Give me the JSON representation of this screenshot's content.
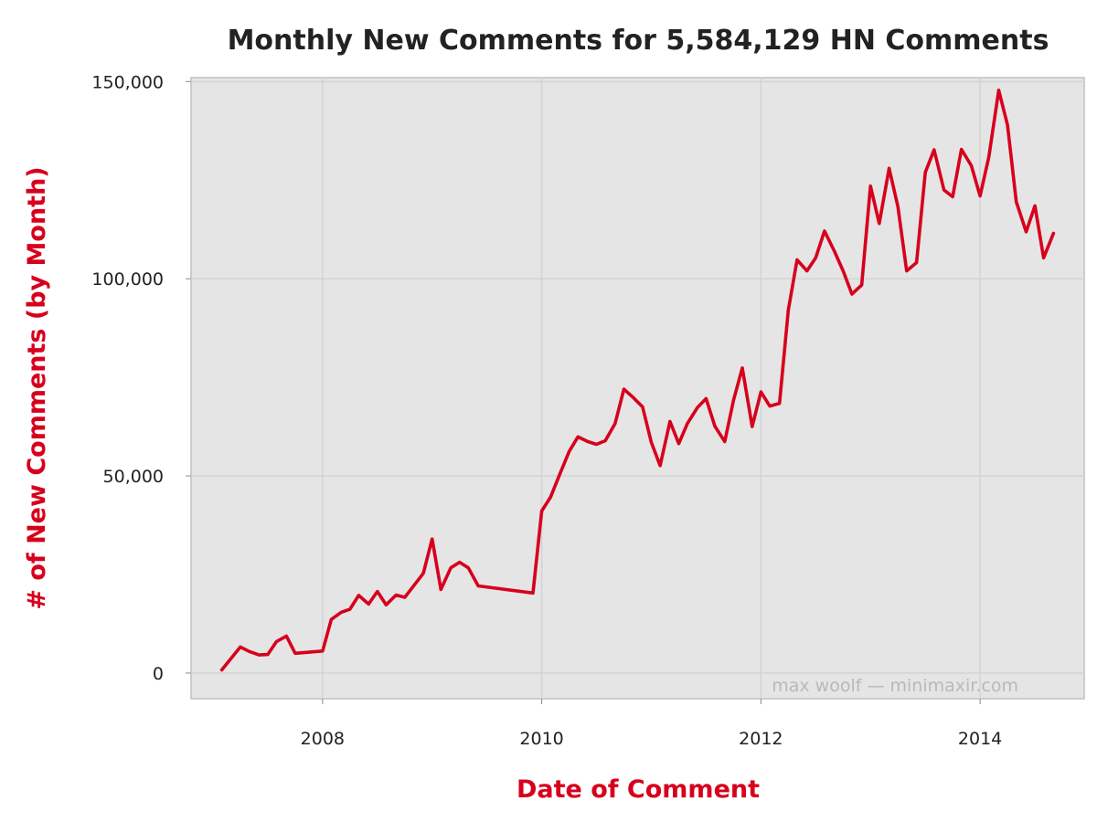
{
  "chart_data": {
    "type": "line",
    "title": "Monthly New Comments for 5,584,129 HN Comments",
    "xlabel": "Date of Comment",
    "ylabel": "# of New Comments (by Month)",
    "watermark": "max woolf — minimaxir.com",
    "xlim": [
      2006.8,
      2014.95
    ],
    "ylim": [
      -6500,
      151000
    ],
    "x_ticks": [
      {
        "value": 2008,
        "label": "2008"
      },
      {
        "value": 2010,
        "label": "2010"
      },
      {
        "value": 2012,
        "label": "2012"
      },
      {
        "value": 2014,
        "label": "2014"
      }
    ],
    "y_ticks": [
      {
        "value": 0,
        "label": "0"
      },
      {
        "value": 50000,
        "label": "50,000"
      },
      {
        "value": 100000,
        "label": "100,000"
      },
      {
        "value": 150000,
        "label": "150,000"
      }
    ],
    "grid": true,
    "colors": {
      "line": "#d7001c",
      "axis_title": "#d7001c",
      "panel": "#e5e5e5",
      "grid": "#d3d3d3",
      "border": "#c0c0c0"
    },
    "series": [
      {
        "points": [
          [
            2007.08,
            800
          ],
          [
            2007.17,
            3900
          ],
          [
            2007.25,
            6600
          ],
          [
            2007.33,
            5500
          ],
          [
            2007.42,
            4600
          ],
          [
            2007.5,
            4700
          ],
          [
            2007.58,
            8000
          ],
          [
            2007.67,
            9400
          ],
          [
            2007.75,
            5000
          ],
          [
            2008.0,
            5600
          ],
          [
            2008.08,
            13600
          ],
          [
            2008.17,
            15400
          ],
          [
            2008.25,
            16200
          ],
          [
            2008.33,
            19700
          ],
          [
            2008.42,
            17500
          ],
          [
            2008.5,
            20700
          ],
          [
            2008.58,
            17300
          ],
          [
            2008.67,
            19800
          ],
          [
            2008.75,
            19200
          ],
          [
            2008.92,
            25300
          ],
          [
            2009.0,
            34000
          ],
          [
            2009.08,
            21200
          ],
          [
            2009.17,
            26700
          ],
          [
            2009.25,
            28100
          ],
          [
            2009.33,
            26700
          ],
          [
            2009.42,
            22100
          ],
          [
            2009.92,
            20300
          ],
          [
            2010.0,
            41100
          ],
          [
            2010.08,
            44600
          ],
          [
            2010.17,
            50800
          ],
          [
            2010.25,
            56200
          ],
          [
            2010.33,
            59900
          ],
          [
            2010.42,
            58700
          ],
          [
            2010.5,
            58000
          ],
          [
            2010.58,
            58900
          ],
          [
            2010.67,
            63300
          ],
          [
            2010.75,
            72000
          ],
          [
            2010.83,
            70000
          ],
          [
            2010.92,
            67500
          ],
          [
            2011.0,
            58500
          ],
          [
            2011.08,
            52600
          ],
          [
            2011.17,
            63800
          ],
          [
            2011.25,
            58200
          ],
          [
            2011.33,
            63300
          ],
          [
            2011.42,
            67300
          ],
          [
            2011.5,
            69600
          ],
          [
            2011.58,
            62600
          ],
          [
            2011.67,
            58700
          ],
          [
            2011.75,
            69200
          ],
          [
            2011.83,
            77400
          ],
          [
            2011.92,
            62500
          ],
          [
            2012.0,
            71300
          ],
          [
            2012.08,
            67700
          ],
          [
            2012.17,
            68400
          ],
          [
            2012.25,
            92000
          ],
          [
            2012.33,
            104800
          ],
          [
            2012.42,
            102000
          ],
          [
            2012.5,
            105300
          ],
          [
            2012.58,
            112100
          ],
          [
            2012.67,
            107000
          ],
          [
            2012.75,
            102000
          ],
          [
            2012.83,
            96100
          ],
          [
            2012.92,
            98400
          ],
          [
            2013.0,
            123500
          ],
          [
            2013.08,
            114000
          ],
          [
            2013.17,
            128000
          ],
          [
            2013.25,
            118300
          ],
          [
            2013.33,
            102000
          ],
          [
            2013.42,
            104100
          ],
          [
            2013.5,
            127000
          ],
          [
            2013.58,
            132700
          ],
          [
            2013.67,
            122500
          ],
          [
            2013.75,
            120800
          ],
          [
            2013.83,
            132800
          ],
          [
            2013.92,
            128700
          ],
          [
            2014.0,
            121000
          ],
          [
            2014.08,
            130900
          ],
          [
            2014.17,
            147800
          ],
          [
            2014.25,
            139000
          ],
          [
            2014.33,
            119500
          ],
          [
            2014.42,
            111900
          ],
          [
            2014.5,
            118500
          ],
          [
            2014.58,
            105300
          ],
          [
            2014.67,
            111500
          ]
        ]
      }
    ]
  }
}
